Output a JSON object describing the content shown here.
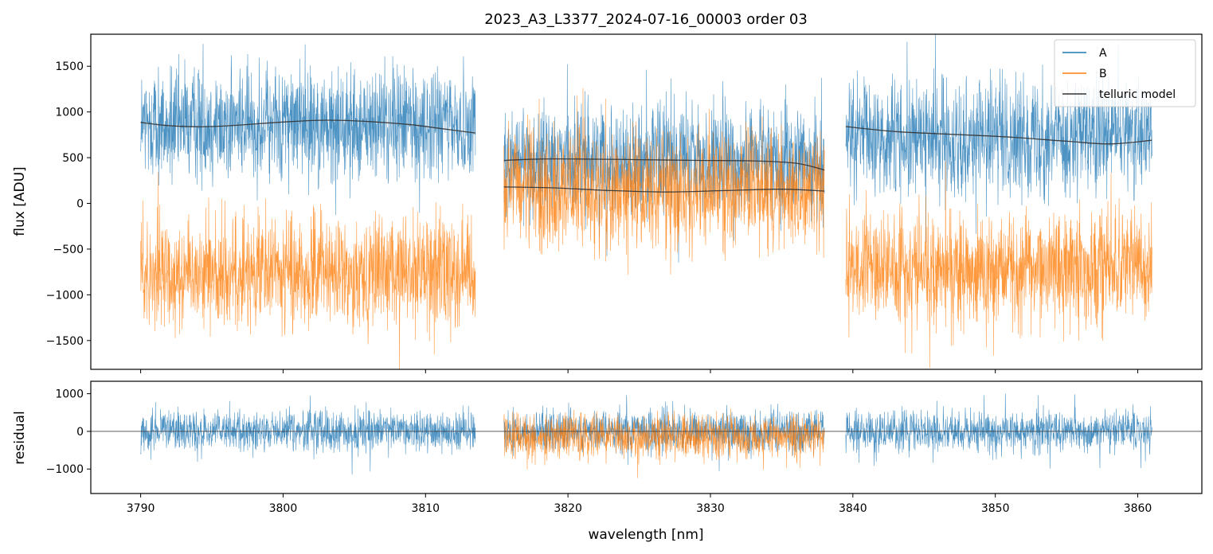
{
  "chart_data": [
    {
      "type": "line",
      "panel": "top",
      "title": "2023_A3_L3377_2024-07-16_00003  order 03",
      "xlabel": "",
      "ylabel": "flux [ADU]",
      "xlim": [
        3786.5,
        3864.5
      ],
      "ylim": [
        -1815,
        1850
      ],
      "yticks": [
        -1500,
        -1000,
        -500,
        0,
        500,
        1000,
        1500
      ],
      "ytick_labels": [
        "−1500",
        "−1000",
        "−500",
        "0",
        "500",
        "1000",
        "1500"
      ],
      "legend_position": "top-right",
      "series": [
        {
          "name": "A",
          "color": "#1f77b4",
          "segments": [
            {
              "x_range": [
                3790.0,
                3813.5
              ],
              "mean": 860,
              "noise_amplitude": 900
            },
            {
              "x_range": [
                3815.5,
                3838.0
              ],
              "mean": 470,
              "noise_amplitude": 850
            },
            {
              "x_range": [
                3839.5,
                3861.0
              ],
              "mean": 730,
              "noise_amplitude": 900
            }
          ]
        },
        {
          "name": "B",
          "color": "#ff7f0e",
          "segments": [
            {
              "x_range": [
                3790.0,
                3813.5
              ],
              "mean": -750,
              "noise_amplitude": 900
            },
            {
              "x_range": [
                3815.5,
                3838.0
              ],
              "mean": 150,
              "noise_amplitude": 950
            },
            {
              "x_range": [
                3839.5,
                3861.0
              ],
              "mean": -700,
              "noise_amplitude": 900
            }
          ]
        },
        {
          "name": "telluric model",
          "color": "#333333",
          "curves": [
            {
              "x": [
                3790,
                3792,
                3795,
                3800,
                3803,
                3806,
                3809,
                3811,
                3813.5
              ],
              "y": [
                885,
                850,
                840,
                890,
                910,
                895,
                860,
                820,
                770
              ]
            },
            {
              "x": [
                3815.5,
                3818,
                3821,
                3825,
                3829,
                3833,
                3836,
                3838
              ],
              "y": [
                470,
                485,
                485,
                478,
                470,
                465,
                440,
                365
              ]
            },
            {
              "x": [
                3815.5,
                3819,
                3823,
                3827,
                3831,
                3835,
                3838
              ],
              "y": [
                180,
                170,
                140,
                125,
                140,
                155,
                135
              ]
            },
            {
              "x": [
                3839.5,
                3843,
                3847,
                3851,
                3855,
                3858,
                3861
              ],
              "y": [
                840,
                785,
                755,
                725,
                680,
                650,
                690
              ]
            }
          ]
        }
      ]
    },
    {
      "type": "line",
      "panel": "bottom",
      "xlabel": "wavelength [nm]",
      "ylabel": "residual",
      "xlim": [
        3786.5,
        3864.5
      ],
      "ylim": [
        -1650,
        1330
      ],
      "xticks": [
        3790,
        3800,
        3810,
        3820,
        3830,
        3840,
        3850,
        3860
      ],
      "xtick_labels": [
        "3790",
        "3800",
        "3810",
        "3820",
        "3830",
        "3840",
        "3850",
        "3860"
      ],
      "yticks": [
        -1000,
        0,
        1000
      ],
      "ytick_labels": [
        "−1000",
        "0",
        "1000"
      ],
      "zero_line": 0,
      "series": [
        {
          "name": "A",
          "color": "#1f77b4",
          "segments": [
            {
              "x_range": [
                3790.0,
                3813.5
              ],
              "mean": 0,
              "noise_amplitude": 800
            },
            {
              "x_range": [
                3815.5,
                3838.0
              ],
              "mean": 0,
              "noise_amplitude": 800
            },
            {
              "x_range": [
                3839.5,
                3861.0
              ],
              "mean": 0,
              "noise_amplitude": 800
            }
          ]
        },
        {
          "name": "B",
          "color": "#ff7f0e",
          "segments": [
            {
              "x_range": [
                3815.5,
                3838.0
              ],
              "mean": -150,
              "noise_amplitude": 900
            }
          ]
        }
      ]
    }
  ],
  "legend": {
    "entries": [
      {
        "label": "A",
        "color": "#1f77b4"
      },
      {
        "label": "B",
        "color": "#ff7f0e"
      },
      {
        "label": "telluric model",
        "color": "#333333"
      }
    ]
  }
}
